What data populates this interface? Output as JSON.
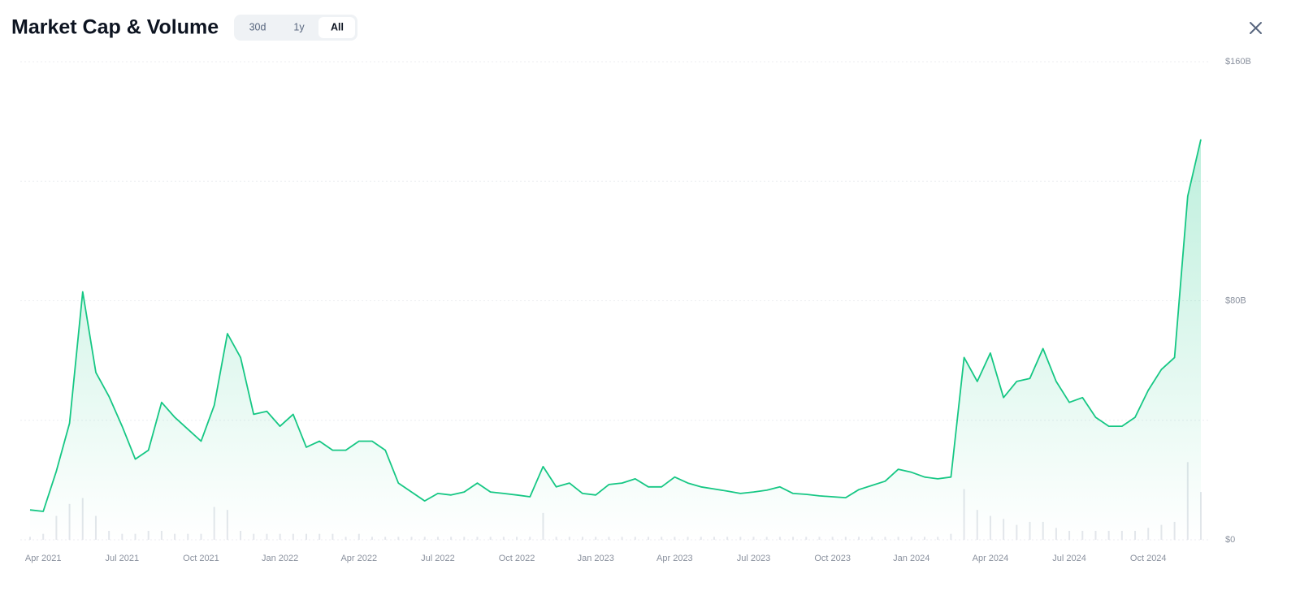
{
  "header": {
    "title": "Market Cap & Volume",
    "tabs": [
      "30d",
      "1y",
      "All"
    ],
    "active_tab": 2
  },
  "chart_data": {
    "type": "line",
    "x": [
      "Mar 2021",
      "Apr 2021",
      "Apr 2021",
      "May 2021",
      "May 2021",
      "Jun 2021",
      "Jun 2021",
      "Jul 2021",
      "Jul 2021",
      "Aug 2021",
      "Aug 2021",
      "Sep 2021",
      "Sep 2021",
      "Oct 2021",
      "Oct 2021",
      "Nov 2021",
      "Nov 2021",
      "Dec 2021",
      "Dec 2021",
      "Jan 2022",
      "Jan 2022",
      "Feb 2022",
      "Feb 2022",
      "Mar 2022",
      "Mar 2022",
      "Apr 2022",
      "Apr 2022",
      "May 2022",
      "May 2022",
      "Jun 2022",
      "Jun 2022",
      "Jul 2022",
      "Jul 2022",
      "Aug 2022",
      "Aug 2022",
      "Sep 2022",
      "Sep 2022",
      "Oct 2022",
      "Oct 2022",
      "Nov 2022",
      "Nov 2022",
      "Dec 2022",
      "Dec 2022",
      "Jan 2023",
      "Jan 2023",
      "Feb 2023",
      "Feb 2023",
      "Mar 2023",
      "Mar 2023",
      "Apr 2023",
      "Apr 2023",
      "May 2023",
      "May 2023",
      "Jun 2023",
      "Jun 2023",
      "Jul 2023",
      "Jul 2023",
      "Aug 2023",
      "Aug 2023",
      "Sep 2023",
      "Sep 2023",
      "Oct 2023",
      "Oct 2023",
      "Nov 2023",
      "Nov 2023",
      "Dec 2023",
      "Dec 2023",
      "Jan 2024",
      "Jan 2024",
      "Feb 2024",
      "Feb 2024",
      "Mar 2024",
      "Mar 2024",
      "Apr 2024",
      "Apr 2024",
      "May 2024",
      "May 2024",
      "Jun 2024",
      "Jun 2024",
      "Jul 2024",
      "Jul 2024",
      "Aug 2024",
      "Aug 2024",
      "Sep 2024",
      "Sep 2024",
      "Oct 2024",
      "Oct 2024",
      "Nov 2024",
      "Nov 2024",
      "Dec 2024"
    ],
    "xticks": [
      "Apr 2021",
      "Jul 2021",
      "Oct 2021",
      "Jan 2022",
      "Apr 2022",
      "Jul 2022",
      "Oct 2022",
      "Jan 2023",
      "Apr 2023",
      "Jul 2023",
      "Oct 2023",
      "Jan 2024",
      "Apr 2024",
      "Jul 2024",
      "Oct 2024"
    ],
    "series": [
      {
        "type": "line",
        "color": "#16c784",
        "values": [
          10,
          9.5,
          23,
          39,
          83,
          56,
          48,
          38,
          27,
          30,
          46,
          41,
          37,
          33,
          45,
          69,
          61,
          42,
          43,
          38,
          42,
          31,
          33,
          30,
          30,
          33,
          33,
          30,
          19,
          16,
          13,
          15.5,
          15,
          16,
          19,
          16,
          15.5,
          15,
          14.4,
          24.5,
          17.7,
          19,
          15.5,
          15,
          18.5,
          19,
          20.4,
          17.7,
          17.7,
          21,
          19,
          17.7,
          17,
          16.3,
          15.5,
          16,
          16.6,
          17.7,
          15.5,
          15.2,
          14.7,
          14.4,
          14.1,
          16.8,
          18.2,
          19.6,
          23.6,
          22.6,
          21,
          20.4,
          21,
          61,
          53,
          62.5,
          47.6,
          53,
          54,
          64,
          53,
          46,
          47.6,
          41,
          38,
          38,
          41,
          50,
          57,
          61,
          115,
          134
        ]
      },
      {
        "type": "bar",
        "color": "#e3e6eb",
        "values": [
          1,
          2,
          8,
          12,
          14,
          8,
          3,
          2,
          2,
          3,
          3,
          2,
          2,
          2,
          11,
          10,
          3,
          2,
          2,
          2,
          2,
          2,
          2,
          2,
          1,
          2,
          1,
          1,
          1,
          1,
          1,
          1,
          1,
          1,
          1,
          1,
          1,
          1,
          1,
          9,
          1,
          1,
          1,
          1,
          1,
          1,
          1,
          1,
          1,
          1,
          1,
          1,
          1,
          1,
          1,
          1,
          1,
          1,
          1,
          1,
          1,
          1,
          1,
          1,
          1,
          1,
          1,
          1,
          1,
          1,
          2,
          17,
          10,
          8,
          7,
          5,
          6,
          6,
          4,
          3,
          3,
          3,
          3,
          3,
          3,
          4,
          5,
          6,
          26,
          16
        ]
      }
    ],
    "ylim": [
      0,
      160
    ],
    "yticks": [
      {
        "value": 0,
        "label": "$0"
      },
      {
        "value": 40,
        "label": null
      },
      {
        "value": 80,
        "label": "$80B"
      },
      {
        "value": 120,
        "label": null
      },
      {
        "value": 160,
        "label": "$160B"
      }
    ],
    "grid": true
  }
}
